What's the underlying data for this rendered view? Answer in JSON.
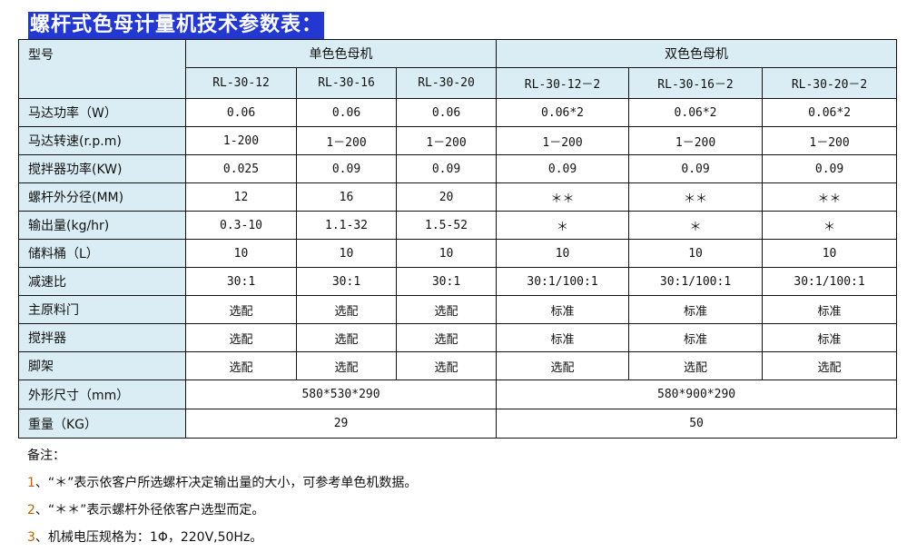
{
  "title": "螺杆式色母计量机技术参数表：",
  "header": {
    "model_label": "型号",
    "single_group": "单色色母机",
    "double_group": "双色色母机",
    "models": [
      "RL-30-12",
      "RL-30-16",
      "RL-30-20",
      "RL-30-12－2",
      "RL-30-16－2",
      "RL-30-20－2"
    ]
  },
  "rows": [
    {
      "label": "马达功率（W）",
      "values": [
        "0.06",
        "0.06",
        "0.06",
        "0.06*2",
        "0.06*2",
        "0.06*2"
      ]
    },
    {
      "label": "马达转速(r.p.m)",
      "values": [
        "1-200",
        "1－200",
        "1－200",
        "1－200",
        "1－200",
        "1－200"
      ]
    },
    {
      "label": "搅拌器功率(KW)",
      "values": [
        "0.025",
        "0.09",
        "0.09",
        "0.09",
        "0.09",
        "0.09"
      ]
    },
    {
      "label": "螺杆外分径(MM)",
      "values": [
        "12",
        "16",
        "20",
        "＊＊",
        "＊＊",
        "＊＊"
      ]
    },
    {
      "label": "输出量(kg/hr)",
      "values": [
        "0.3-10",
        "1.1-32",
        "1.5-52",
        "＊",
        "＊",
        "＊"
      ]
    },
    {
      "label": "储料桶（L）",
      "values": [
        "10",
        "10",
        "10",
        "10",
        "10",
        "10"
      ]
    },
    {
      "label": "减速比",
      "values": [
        "30:1",
        "30:1",
        "30:1",
        "30:1/100:1",
        "30:1/100:1",
        "30:1/100:1"
      ]
    },
    {
      "label": "主原料门",
      "values": [
        "选配",
        "选配",
        "选配",
        "标准",
        "标准",
        "标准"
      ]
    },
    {
      "label": "搅拌器",
      "values": [
        "选配",
        "选配",
        "选配",
        "标准",
        "标准",
        "标准"
      ]
    },
    {
      "label": "脚架",
      "values": [
        "选配",
        "选配",
        "选配",
        "选配",
        "选配",
        "选配"
      ]
    }
  ],
  "merged_rows": [
    {
      "label": "外形尺寸（mm）",
      "single": "580*530*290",
      "double": "580*900*290"
    },
    {
      "label": "重量（KG）",
      "single": "29",
      "double": "50"
    }
  ],
  "notes": {
    "heading": "备注：",
    "items": [
      {
        "num": "1",
        "text": "、“＊”表示依客户所选螺杆决定输出量的大小，可参考单色机数据。"
      },
      {
        "num": "2",
        "text": "、“＊＊”表示螺杆外径依客户选型而定。"
      },
      {
        "num": "3",
        "text": "、机械电压规格为：1Φ，220V,50Hz。"
      }
    ]
  }
}
